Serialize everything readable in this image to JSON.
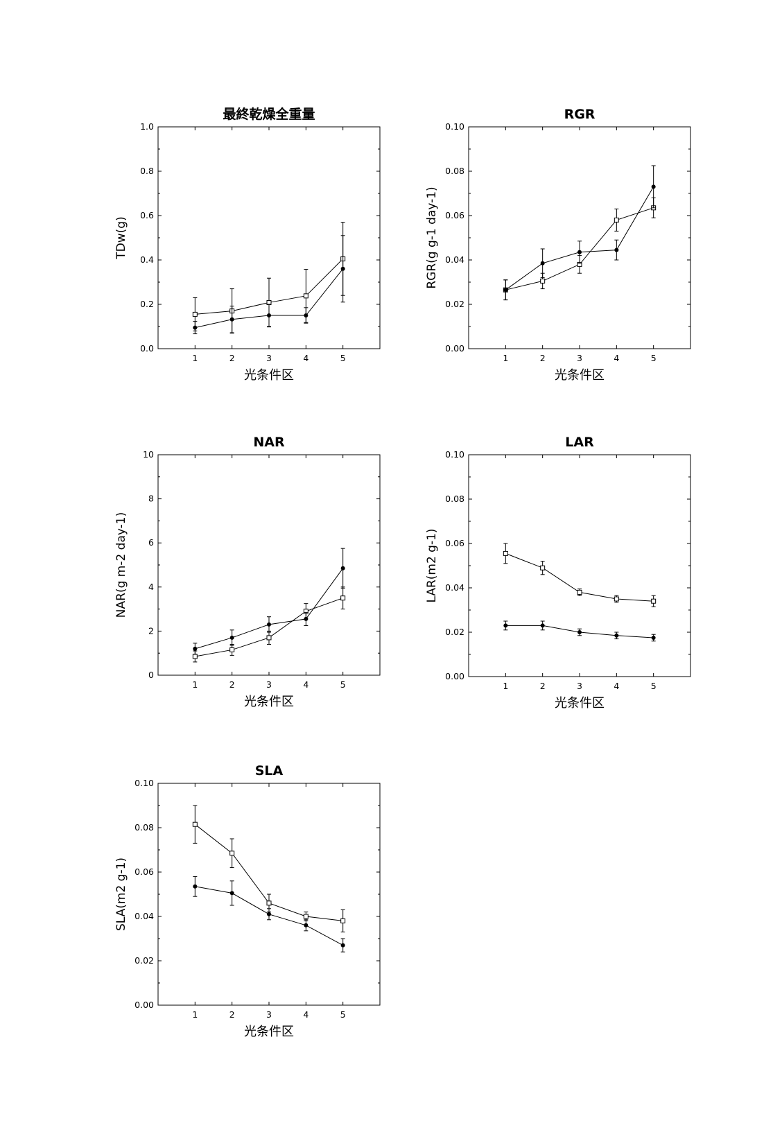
{
  "chart_data": [
    {
      "type": "line",
      "title": "最終乾燥全重量",
      "xlabel": "光条件区",
      "ylabel": "TDw(g)",
      "categories": [
        "1",
        "2",
        "3",
        "4",
        "5"
      ],
      "xlim": [
        0,
        6
      ],
      "ylim": [
        0,
        1.0
      ],
      "yticks": [
        "0.0",
        "0.2",
        "0.4",
        "0.6",
        "0.8",
        "1.0"
      ],
      "series": [
        {
          "name": "open-square",
          "marker": "square",
          "values": [
            0.155,
            0.17,
            0.208,
            0.238,
            0.405
          ],
          "errors": [
            0.075,
            0.1,
            0.11,
            0.12,
            0.165
          ]
        },
        {
          "name": "filled-circle",
          "marker": "circle",
          "values": [
            0.095,
            0.132,
            0.15,
            0.15,
            0.36
          ],
          "errors": [
            0.028,
            0.06,
            0.05,
            0.035,
            0.15
          ]
        }
      ]
    },
    {
      "type": "line",
      "title": "RGR",
      "xlabel": "光条件区",
      "ylabel": "RGR",
      "ylabel_unit": "(g g-1 day-1)",
      "categories": [
        "1",
        "2",
        "3",
        "4",
        "5"
      ],
      "xlim": [
        0,
        6
      ],
      "ylim": [
        0,
        0.1
      ],
      "yticks": [
        "0.00",
        "0.02",
        "0.04",
        "0.06",
        "0.08",
        "0.10"
      ],
      "series": [
        {
          "name": "open-square",
          "marker": "square",
          "values": [
            0.0265,
            0.0305,
            0.038,
            0.058,
            0.0635
          ],
          "errors": [
            0.0045,
            0.0035,
            0.004,
            0.005,
            0.0045
          ]
        },
        {
          "name": "filled-circle",
          "marker": "circle",
          "values": [
            0.0265,
            0.0385,
            0.0435,
            0.0445,
            0.073
          ],
          "errors": [
            0.0045,
            0.0065,
            0.005,
            0.0045,
            0.0095
          ]
        }
      ]
    },
    {
      "type": "line",
      "title": "NAR",
      "xlabel": "光条件区",
      "ylabel": "NAR",
      "ylabel_unit": "(g m-2 day-1)",
      "categories": [
        "1",
        "2",
        "3",
        "4",
        "5"
      ],
      "xlim": [
        0,
        6
      ],
      "ylim": [
        0,
        10
      ],
      "yticks": [
        "0",
        "2",
        "4",
        "6",
        "8",
        "10"
      ],
      "series": [
        {
          "name": "open-square",
          "marker": "square",
          "values": [
            0.85,
            1.15,
            1.7,
            2.9,
            3.5
          ],
          "errors": [
            0.25,
            0.25,
            0.3,
            0.35,
            0.5
          ]
        },
        {
          "name": "filled-circle",
          "marker": "circle",
          "values": [
            1.2,
            1.7,
            2.3,
            2.55,
            4.85
          ],
          "errors": [
            0.25,
            0.35,
            0.35,
            0.3,
            0.9
          ]
        }
      ]
    },
    {
      "type": "line",
      "title": "LAR",
      "xlabel": "光条件区",
      "ylabel": "LAR",
      "ylabel_unit": "(m2 g-1)",
      "categories": [
        "1",
        "2",
        "3",
        "4",
        "5"
      ],
      "xlim": [
        0,
        6
      ],
      "ylim": [
        0,
        0.1
      ],
      "yticks": [
        "0.00",
        "0.02",
        "0.04",
        "0.06",
        "0.08",
        "0.10"
      ],
      "series": [
        {
          "name": "open-square",
          "marker": "square",
          "values": [
            0.0555,
            0.049,
            0.038,
            0.035,
            0.034
          ],
          "errors": [
            0.0045,
            0.003,
            0.0015,
            0.0015,
            0.0025
          ]
        },
        {
          "name": "filled-circle",
          "marker": "circle",
          "values": [
            0.023,
            0.023,
            0.02,
            0.0185,
            0.0175
          ],
          "errors": [
            0.002,
            0.002,
            0.0015,
            0.0015,
            0.0015
          ]
        }
      ]
    },
    {
      "type": "line",
      "title": "SLA",
      "xlabel": "光条件区",
      "ylabel": "SLA",
      "ylabel_unit": "(m2 g-1)",
      "categories": [
        "1",
        "2",
        "3",
        "4",
        "5"
      ],
      "xlim": [
        0,
        6
      ],
      "ylim": [
        0,
        0.1
      ],
      "yticks": [
        "0.00",
        "0.02",
        "0.04",
        "0.06",
        "0.08",
        "0.10"
      ],
      "series": [
        {
          "name": "open-square",
          "marker": "square",
          "values": [
            0.0815,
            0.0685,
            0.046,
            0.04,
            0.038
          ],
          "errors": [
            0.0085,
            0.0065,
            0.004,
            0.002,
            0.005
          ]
        },
        {
          "name": "filled-circle",
          "marker": "circle",
          "values": [
            0.0535,
            0.0505,
            0.041,
            0.036,
            0.027
          ],
          "errors": [
            0.0045,
            0.0055,
            0.0025,
            0.0025,
            0.003
          ]
        }
      ]
    }
  ]
}
